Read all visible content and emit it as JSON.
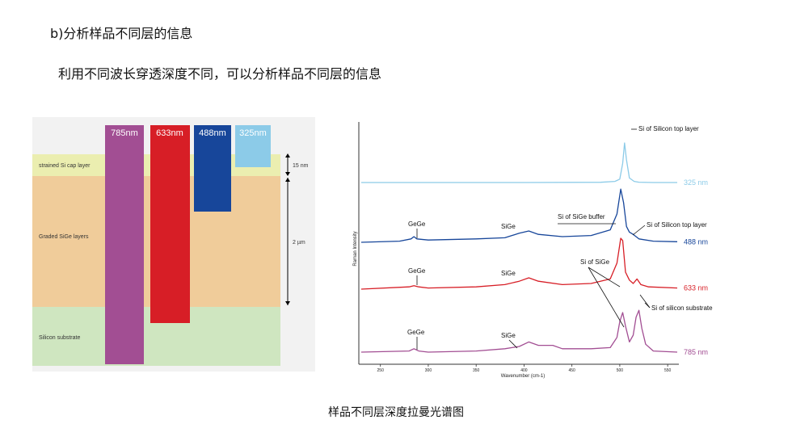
{
  "header": {
    "title": "b)分析样品不同层的信息",
    "subtitle": "利用不同波长穿透深度不同，可以分析样品不同层的信息",
    "caption": "样品不同层深度拉曼光谱图"
  },
  "diagram": {
    "layers": [
      {
        "label": "strained Si cap layer",
        "color": "#ebeeb0"
      },
      {
        "label": "Graded SiGe layers",
        "color": "#f0cc9a"
      },
      {
        "label": "Silicon substrate",
        "color": "#cfe6c0"
      }
    ],
    "beams": [
      {
        "label": "785nm",
        "color": "#a24e93",
        "depth_layer": "Silicon substrate"
      },
      {
        "label": "633nm",
        "color": "#d71e26",
        "depth_layer": "Graded SiGe layers"
      },
      {
        "label": "488nm",
        "color": "#17469a",
        "depth_layer": "Graded SiGe layers"
      },
      {
        "label": "325nm",
        "color": "#8ccbe8",
        "depth_layer": "strained Si cap layer"
      }
    ],
    "dimensions": [
      "15 nm",
      "2 µm"
    ]
  },
  "chart_data": {
    "type": "line",
    "xlabel": "Wavenumber (cm-1)",
    "ylabel": "Raman Intensity",
    "xlim": [
      230,
      560
    ],
    "xticks": [
      "250",
      "300",
      "350",
      "400",
      "450",
      "500",
      "550"
    ],
    "series": [
      {
        "name": "325 nm",
        "color": "#8ccbe8",
        "x": [
          230,
          300,
          400,
          480,
          495,
          500,
          503,
          505,
          507,
          510,
          515,
          520,
          535,
          560
        ],
        "y": [
          0.5,
          0.5,
          0.5,
          0.52,
          0.6,
          0.8,
          2.2,
          4.0,
          2.5,
          0.9,
          0.6,
          0.53,
          0.5,
          0.5
        ]
      },
      {
        "name": "488 nm",
        "color": "#17469a",
        "x": [
          230,
          270,
          282,
          285,
          288,
          300,
          350,
          380,
          395,
          405,
          415,
          440,
          470,
          490,
          497,
          501,
          504,
          507,
          510,
          514,
          520,
          535,
          560
        ],
        "y": [
          0.5,
          0.6,
          0.8,
          1.0,
          0.8,
          0.7,
          0.8,
          0.9,
          1.3,
          1.5,
          1.2,
          1.0,
          1.1,
          1.6,
          3.0,
          5.2,
          4.0,
          1.9,
          1.4,
          1.2,
          0.8,
          0.6,
          0.55
        ]
      },
      {
        "name": "633 nm",
        "color": "#d71e26",
        "x": [
          230,
          280,
          285,
          290,
          300,
          350,
          380,
          395,
          405,
          415,
          440,
          470,
          490,
          497,
          501,
          503,
          506,
          510,
          514,
          518,
          522,
          530,
          560
        ],
        "y": [
          0.5,
          0.7,
          0.8,
          0.7,
          0.6,
          0.7,
          0.9,
          1.2,
          1.5,
          1.2,
          0.9,
          1.0,
          1.4,
          2.8,
          5.0,
          4.8,
          2.0,
          1.3,
          1.0,
          1.4,
          0.9,
          0.7,
          0.6
        ]
      },
      {
        "name": "785 nm",
        "color": "#a24e93",
        "x": [
          230,
          280,
          285,
          290,
          300,
          350,
          380,
          395,
          405,
          415,
          430,
          440,
          470,
          490,
          497,
          500,
          503,
          506,
          510,
          514,
          517,
          520,
          523,
          527,
          535,
          560
        ],
        "y": [
          0.5,
          0.6,
          0.8,
          0.6,
          0.5,
          0.6,
          0.8,
          1.0,
          1.4,
          1.1,
          1.1,
          0.8,
          0.8,
          0.9,
          1.8,
          3.2,
          4.0,
          2.8,
          1.4,
          2.0,
          3.6,
          4.2,
          2.6,
          1.2,
          0.6,
          0.5
        ]
      }
    ],
    "annotations": [
      "Si of Silicon top layer",
      "Si of SiGe buffer",
      "Si of Silicon top layer",
      "GeGe",
      "SiGe",
      "GeGe",
      "SiGe",
      "Si of SiGe",
      "Si of silicon substrate",
      "GeGe",
      "SiGe"
    ]
  }
}
